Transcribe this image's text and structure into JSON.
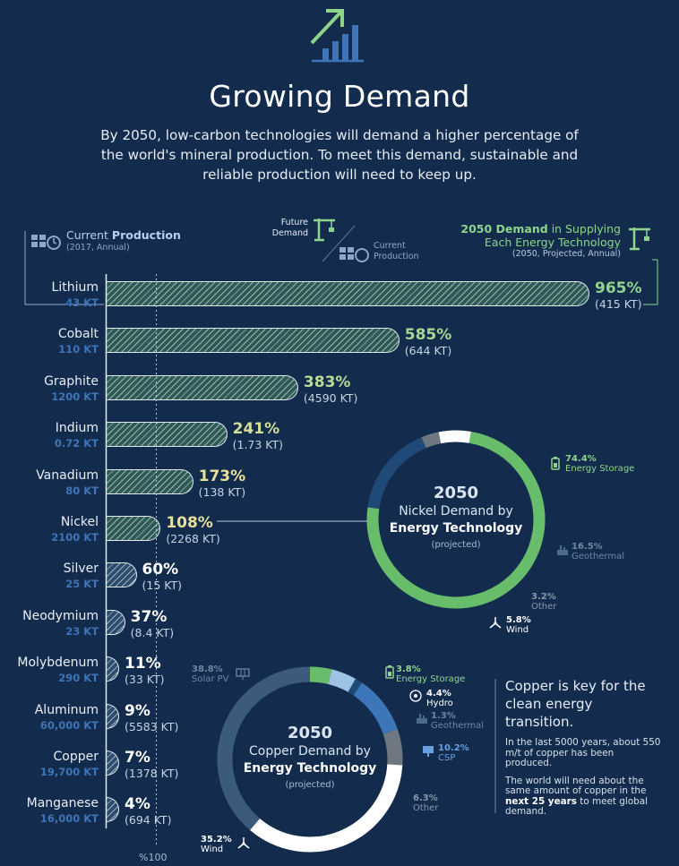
{
  "header": {
    "title": "Growing Demand",
    "intro": "By 2050, low-carbon technologies will demand a higher percentage of the world's mineral production. To meet this demand, sustainable and reliable production will need to keep up."
  },
  "legend": {
    "current_production_pre": "Current ",
    "current_production_bold": "Production",
    "current_production_sub": "(2017, Annual)",
    "future_demand": [
      "Future",
      "Demand"
    ],
    "current_production_small": [
      "Current",
      "Production"
    ],
    "demand_bold": "2050 Demand",
    "demand_rest": " in Supplying",
    "demand_line2": "Each Energy Technology",
    "demand_sub": "(2050, Projected, Annual)"
  },
  "axis_label": "%100",
  "colors": {
    "background": "#132c4e",
    "accent_green": "#8fd48b",
    "kt_blue": "#3e74b8",
    "bar_fill": "#2c4c6c",
    "ring_green": "#68bd6b",
    "ring_blue": "#1f4a78",
    "ring_gray": "#6f7780",
    "ring_white": "#ffffff",
    "ring_slate": "#3b5a7c",
    "ring_light_blue": "#9ec2e3",
    "ring_mid_blue": "#3d76b8"
  },
  "chart_data": [
    {
      "type": "bar",
      "orientation": "horizontal",
      "categories": [
        "Lithium",
        "Cobalt",
        "Graphite",
        "Indium",
        "Vanadium",
        "Nickel",
        "Silver",
        "Neodymium",
        "Molybdenum",
        "Aluminum",
        "Copper",
        "Manganese"
      ],
      "current_production": [
        "43 KT",
        "110 KT",
        "1200 KT",
        "0.72 KT",
        "80 KT",
        "2100 KT",
        "25 KT",
        "23 KT",
        "290 KT",
        "60,000 KT",
        "19,700 KT",
        "16,000 KT"
      ],
      "values": [
        965,
        585,
        383,
        241,
        173,
        108,
        60,
        37,
        11,
        9,
        7,
        4
      ],
      "value_labels": [
        "965%",
        "585%",
        "383%",
        "241%",
        "173%",
        "108%",
        "60%",
        "37%",
        "11%",
        "9%",
        "7%",
        "4%"
      ],
      "demand_2050": [
        "(415 KT)",
        "(644 KT)",
        "(4590 KT)",
        "(1.73 KT)",
        "(138 KT)",
        "(2268 KT)",
        "(15 KT)",
        "(8.4 KT)",
        "(33 KT)",
        "(5583 KT)",
        "(1378 KT)",
        "(694 KT)"
      ],
      "reference_line": 100,
      "xlabel": "%100"
    },
    {
      "type": "pie",
      "variant": "donut",
      "title": [
        "2050",
        "Nickel Demand by",
        "Energy Technology",
        "(projected)"
      ],
      "slices": [
        {
          "label": "Energy Storage",
          "value": 74.4,
          "pct_label": "74.4%",
          "color": "#68bd6b",
          "icon": "battery-icon"
        },
        {
          "label": "Geothermal",
          "value": 16.5,
          "pct_label": "16.5%",
          "color": "#1f4a78",
          "icon": "geothermal-icon"
        },
        {
          "label": "Other",
          "value": 3.2,
          "pct_label": "3.2%",
          "color": "#6f7780",
          "icon": ""
        },
        {
          "label": "Wind",
          "value": 5.8,
          "pct_label": "5.8%",
          "color": "#ffffff",
          "icon": "wind-turbine-icon"
        }
      ]
    },
    {
      "type": "pie",
      "variant": "donut",
      "title": [
        "2050",
        "Copper Demand by",
        "Energy Technology",
        "(projected)"
      ],
      "slices": [
        {
          "label": "Energy Storage",
          "value": 3.8,
          "pct_label": "3.8%",
          "color": "#68bd6b",
          "icon": "battery-icon"
        },
        {
          "label": "Hydro",
          "value": 4.4,
          "pct_label": "4.4%",
          "color": "#9ec2e3",
          "icon": "hydro-icon"
        },
        {
          "label": "Geothermal",
          "value": 1.3,
          "pct_label": "1.3%",
          "color": "#1f4a78",
          "icon": "geothermal-icon"
        },
        {
          "label": "CSP",
          "value": 10.2,
          "pct_label": "10.2%",
          "color": "#3d76b8",
          "icon": "csp-icon"
        },
        {
          "label": "Other",
          "value": 6.3,
          "pct_label": "6.3%",
          "color": "#6f7780",
          "icon": ""
        },
        {
          "label": "Wind",
          "value": 35.2,
          "pct_label": "35.2%",
          "color": "#ffffff",
          "icon": "wind-turbine-icon"
        },
        {
          "label": "Solar PV",
          "value": 38.8,
          "pct_label": "38.8%",
          "color": "#3b5a7c",
          "icon": "solar-panel-icon"
        }
      ]
    }
  ],
  "copper_info": {
    "title": "Copper is key for the clean energy transition.",
    "p1": "In the last 5000 years, about 550 m/t of copper has been produced.",
    "p2_pre": "The world will need about the same amount of copper in the ",
    "p2_bold": "next 25 years",
    "p2_post": " to meet global demand."
  }
}
